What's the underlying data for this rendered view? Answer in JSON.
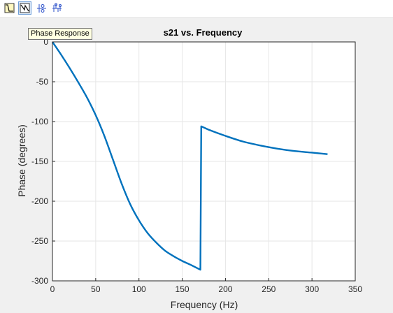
{
  "toolbar": {
    "buttons": [
      {
        "icon": "magnitude-response-icon",
        "active": false
      },
      {
        "icon": "phase-response-icon",
        "active": true
      },
      {
        "icon": "pole-zero-icon",
        "active": false
      },
      {
        "icon": "impulse-response-icon",
        "active": false
      }
    ],
    "tooltip": "Phase Response"
  },
  "colors": {
    "line": "#0072bd",
    "grid": "#e6e6e6",
    "axes_bg": "#ffffff"
  },
  "chart_data": {
    "type": "line",
    "title": "s21 vs. Frequency",
    "xlabel": "Frequency (Hz)",
    "ylabel": "Phase (degrees)",
    "xlim": [
      0,
      350
    ],
    "ylim": [
      -300,
      0
    ],
    "xticks": [
      0,
      50,
      100,
      150,
      200,
      250,
      300,
      350
    ],
    "yticks": [
      0,
      -50,
      -100,
      -150,
      -200,
      -250,
      -300
    ],
    "grid": true,
    "series": [
      {
        "x": [
          0,
          10,
          20,
          30,
          40,
          50,
          60,
          70,
          80,
          90,
          100,
          110,
          120,
          130,
          140,
          150,
          160,
          171,
          172,
          180,
          200,
          220,
          240,
          260,
          280,
          300,
          318
        ],
        "y": [
          0,
          -16,
          -33,
          -51,
          -70,
          -92,
          -118,
          -148,
          -178,
          -204,
          -224,
          -240,
          -252,
          -262,
          -269,
          -275,
          -280,
          -286,
          -106,
          -110,
          -118,
          -125,
          -130,
          -134,
          -137,
          -139,
          -141
        ]
      }
    ]
  }
}
